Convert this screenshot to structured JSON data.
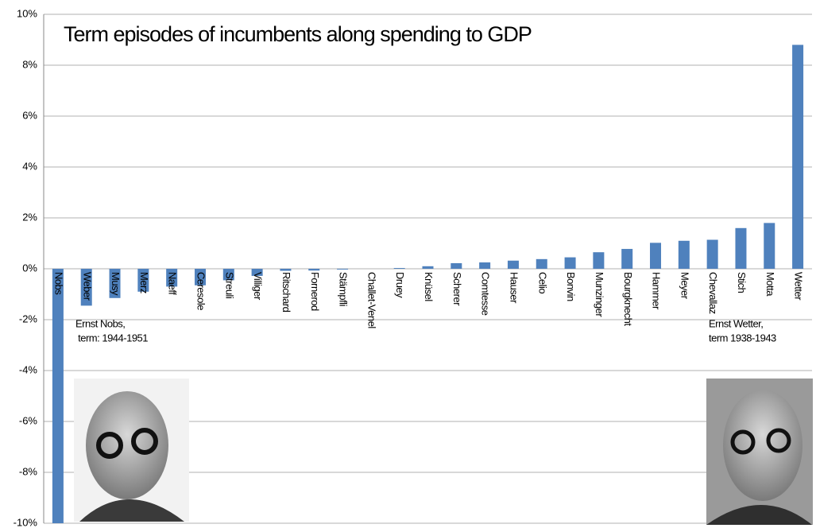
{
  "chart_data": {
    "type": "bar",
    "title": "Term episodes of incumbents along spending to GDP",
    "categories": [
      "Nobs",
      "Weber",
      "Musy",
      "Merz",
      "Naeff",
      "Ceresole",
      "Streuli",
      "Villiger",
      "Ritschard",
      "Fornerod",
      "Stämpfli",
      "Challet-Venel",
      "Druey",
      "Knüsel",
      "Scherer",
      "Comtesse",
      "Hauser",
      "Celio",
      "Bonvin",
      "Munzinger",
      "Bourgknecht",
      "Hammer",
      "Meyer",
      "Chevallaz",
      "Stich",
      "Motta",
      "Wetter"
    ],
    "values": [
      -10,
      -1.45,
      -1.15,
      -0.9,
      -0.7,
      -0.65,
      -0.45,
      -0.28,
      -0.08,
      -0.07,
      -0.03,
      0.0,
      0.03,
      0.1,
      0.22,
      0.25,
      0.32,
      0.38,
      0.45,
      0.65,
      0.78,
      1.02,
      1.1,
      1.14,
      1.6,
      1.8,
      8.8
    ],
    "color": "#4f81bd",
    "ylim": [
      -10,
      10
    ],
    "yticks": [
      {
        "value": -10,
        "label": "-10%"
      },
      {
        "value": -8,
        "label": "-8%"
      },
      {
        "value": -6,
        "label": "-6%"
      },
      {
        "value": -4,
        "label": "-4%"
      },
      {
        "value": -2,
        "label": "-2%"
      },
      {
        "value": 0,
        "label": "0%"
      },
      {
        "value": 2,
        "label": "2%"
      },
      {
        "value": 4,
        "label": "4%"
      },
      {
        "value": 6,
        "label": "6%"
      },
      {
        "value": 8,
        "label": "8%"
      },
      {
        "value": 10,
        "label": "10%"
      }
    ],
    "grid": true,
    "annotations": [
      {
        "lines": [
          "Ernst Nobs,",
          " term: 1944-1951"
        ]
      },
      {
        "lines": [
          "Ernst Wetter,",
          "term 1938-1943"
        ]
      }
    ]
  }
}
